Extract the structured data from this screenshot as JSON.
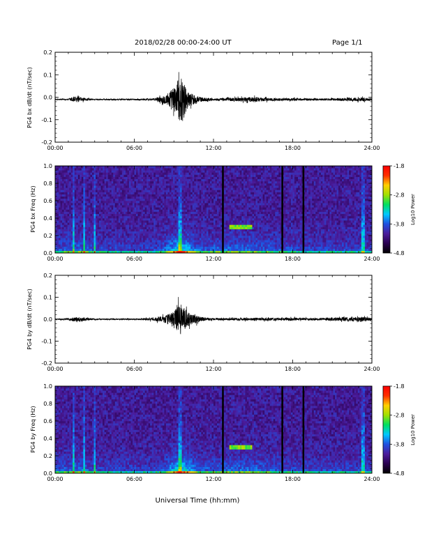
{
  "header": {
    "title": "2018/02/28  00:00-24:00 UT",
    "page": "Page 1/1"
  },
  "footer": {
    "xlabel": "Universal Time (hh:mm)"
  },
  "colors": {
    "trace": "#000000",
    "colorbar_stops": [
      "#000000",
      "#2a0050",
      "#4b1c9c",
      "#2050e0",
      "#00c8ff",
      "#00e060",
      "#a0e000",
      "#ffd000",
      "#ff3000",
      "#ff0000"
    ]
  },
  "chart_data": [
    {
      "type": "line",
      "name": "bx-dbdt",
      "ylabel": "PG4 bx dB/dt (nT/sec)",
      "xlim": [
        0,
        24
      ],
      "ylim": [
        -0.2,
        0.2
      ],
      "xticks": [
        "00:00",
        "06:00",
        "12:00",
        "18:00",
        "24:00"
      ],
      "yticks": [
        "0.2",
        "0.1",
        "0.0",
        "-0.1",
        "-0.2"
      ],
      "baseline": -0.01,
      "envelope": [
        {
          "x": 0.0,
          "amp": 0.004
        },
        {
          "x": 1.0,
          "amp": 0.006
        },
        {
          "x": 1.4,
          "amp": 0.025
        },
        {
          "x": 2.2,
          "amp": 0.012
        },
        {
          "x": 3.0,
          "amp": 0.005
        },
        {
          "x": 6.0,
          "amp": 0.005
        },
        {
          "x": 7.5,
          "amp": 0.01
        },
        {
          "x": 8.3,
          "amp": 0.035
        },
        {
          "x": 9.0,
          "amp": 0.1
        },
        {
          "x": 9.5,
          "amp": 0.19
        },
        {
          "x": 10.1,
          "amp": 0.06
        },
        {
          "x": 11.0,
          "amp": 0.02
        },
        {
          "x": 12.0,
          "amp": 0.008
        },
        {
          "x": 15.0,
          "amp": 0.02
        },
        {
          "x": 16.5,
          "amp": 0.012
        },
        {
          "x": 20.0,
          "amp": 0.008
        },
        {
          "x": 23.3,
          "amp": 0.015
        },
        {
          "x": 24.0,
          "amp": 0.01
        }
      ]
    },
    {
      "type": "heatmap",
      "name": "bx-spectrogram",
      "ylabel": "PG4 bx Freq (Hz)",
      "xlim": [
        0,
        24
      ],
      "ylim": [
        0,
        1.0
      ],
      "xticks": [
        "00:00",
        "06:00",
        "12:00",
        "18:00",
        "24:00"
      ],
      "yticks": [
        "1.0",
        "0.8",
        "0.6",
        "0.4",
        "0.2",
        "0.0"
      ],
      "colorbar": {
        "label": "Log10 Power",
        "range": [
          -4.8,
          -1.8
        ],
        "ticks": [
          "-1.8",
          "-2.8",
          "-3.8",
          "-4.8"
        ]
      },
      "data_gaps_hours": [
        12.7,
        17.2,
        18.8
      ],
      "spike_hours": [
        1.4,
        2.2,
        3.0,
        9.5,
        23.3
      ],
      "narrowband": {
        "start": 13.2,
        "end": 14.9,
        "freq": 0.3
      }
    },
    {
      "type": "line",
      "name": "by-dbdt",
      "ylabel": "PG4 by dB/dt (nT/sec)",
      "xlim": [
        0,
        24
      ],
      "ylim": [
        -0.2,
        0.2
      ],
      "xticks": [
        "00:00",
        "06:00",
        "12:00",
        "18:00",
        "24:00"
      ],
      "yticks": [
        "0.2",
        "0.1",
        "0.0",
        "-0.1",
        "-0.2"
      ],
      "baseline": 0.0,
      "envelope": [
        {
          "x": 0.0,
          "amp": 0.005
        },
        {
          "x": 1.0,
          "amp": 0.008
        },
        {
          "x": 1.5,
          "amp": 0.02
        },
        {
          "x": 2.3,
          "amp": 0.012
        },
        {
          "x": 3.0,
          "amp": 0.005
        },
        {
          "x": 6.0,
          "amp": 0.005
        },
        {
          "x": 7.5,
          "amp": 0.012
        },
        {
          "x": 8.3,
          "amp": 0.03
        },
        {
          "x": 9.0,
          "amp": 0.07
        },
        {
          "x": 9.5,
          "amp": 0.13
        },
        {
          "x": 10.2,
          "amp": 0.05
        },
        {
          "x": 11.0,
          "amp": 0.02
        },
        {
          "x": 12.0,
          "amp": 0.008
        },
        {
          "x": 15.0,
          "amp": 0.012
        },
        {
          "x": 20.0,
          "amp": 0.01
        },
        {
          "x": 23.3,
          "amp": 0.02
        },
        {
          "x": 24.0,
          "amp": 0.01
        }
      ]
    },
    {
      "type": "heatmap",
      "name": "by-spectrogram",
      "ylabel": "PG4 by Freq (Hz)",
      "xlim": [
        0,
        24
      ],
      "ylim": [
        0,
        1.0
      ],
      "xticks": [
        "00:00",
        "06:00",
        "12:00",
        "18:00",
        "24:00"
      ],
      "yticks": [
        "1.0",
        "0.8",
        "0.6",
        "0.4",
        "0.2",
        "0.0"
      ],
      "colorbar": {
        "label": "Log10 Power",
        "range": [
          -4.8,
          -1.8
        ],
        "ticks": [
          "-1.8",
          "-2.8",
          "-3.8",
          "-4.8"
        ]
      },
      "data_gaps_hours": [
        12.7,
        17.2,
        18.8
      ],
      "spike_hours": [
        1.4,
        2.2,
        3.0,
        9.5,
        23.3
      ],
      "narrowband": {
        "start": 13.2,
        "end": 14.9,
        "freq": 0.3
      }
    }
  ]
}
